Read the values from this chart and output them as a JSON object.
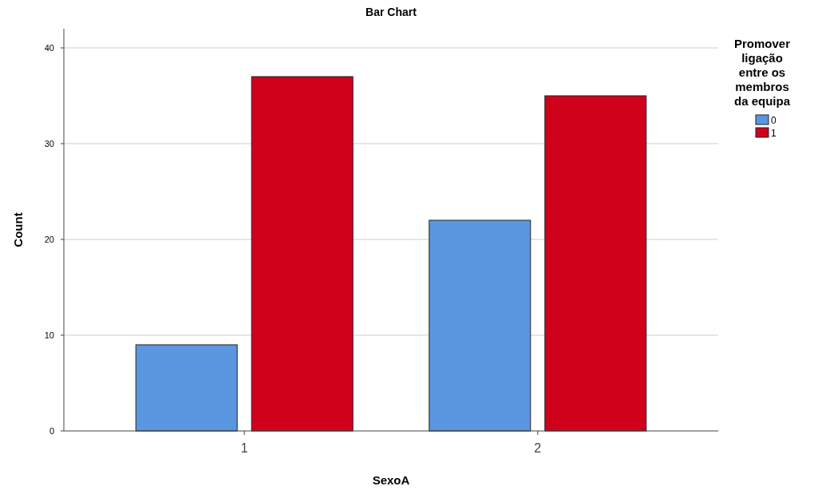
{
  "chart_data": {
    "type": "bar",
    "title": "Bar Chart",
    "xlabel": "SexoA",
    "ylabel": "Count",
    "legend_title": "Promover ligação entre os membros da equipa",
    "categories": [
      "1",
      "2"
    ],
    "series": [
      {
        "name": "0",
        "color": "#5b96e0",
        "values": [
          9,
          22
        ]
      },
      {
        "name": "1",
        "color": "#d0021b",
        "values": [
          37,
          35
        ]
      }
    ],
    "ylim": [
      0,
      42
    ],
    "yticks": [
      0,
      10,
      20,
      30,
      40
    ],
    "grid": "y",
    "legend": "right"
  }
}
